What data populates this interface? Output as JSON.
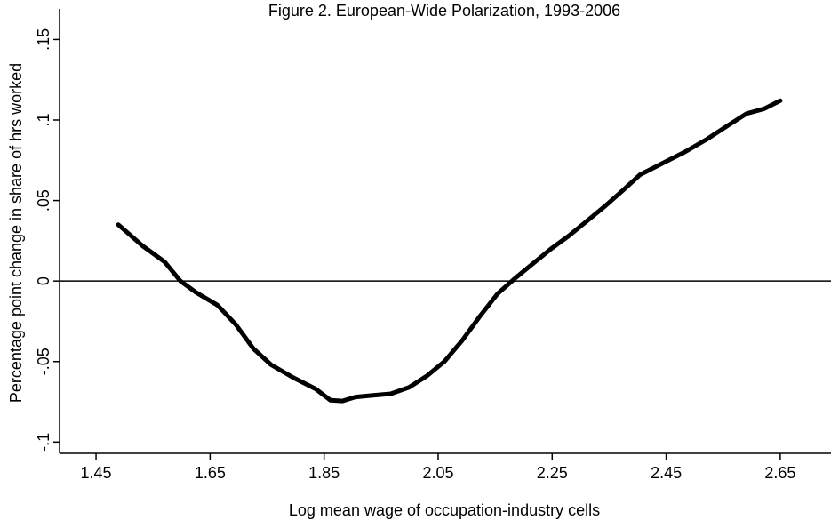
{
  "chart_data": {
    "type": "line",
    "title": "Figure 2. European-Wide Polarization, 1993-2006",
    "x_label": "Log mean wage of occupation-industry cells",
    "y_label": "Percentage point change in share of hrs worked",
    "x": [
      1.489,
      1.531,
      1.57,
      1.598,
      1.625,
      1.663,
      1.695,
      1.726,
      1.757,
      1.796,
      1.835,
      1.861,
      1.882,
      1.905,
      1.936,
      1.967,
      1.999,
      2.03,
      2.061,
      2.092,
      2.123,
      2.154,
      2.186,
      2.217,
      2.248,
      2.279,
      2.31,
      2.341,
      2.373,
      2.404,
      2.443,
      2.482,
      2.521,
      2.56,
      2.591,
      2.622,
      2.65
    ],
    "series": [
      {
        "color": "#000000",
        "values": [
          0.035,
          0.022,
          0.012,
          0.0,
          -0.007,
          -0.015,
          -0.027,
          -0.042,
          -0.052,
          -0.06,
          -0.067,
          -0.074,
          -0.0745,
          -0.072,
          -0.071,
          -0.07,
          -0.066,
          -0.059,
          -0.05,
          -0.037,
          -0.022,
          -0.008,
          0.002,
          0.011,
          0.02,
          0.028,
          0.037,
          0.046,
          0.056,
          0.066,
          0.073,
          0.08,
          0.088,
          0.097,
          0.104,
          0.107,
          0.112
        ]
      }
    ],
    "xlim": [
      1.386,
      2.739
    ],
    "ylim": [
      -0.107,
      0.169
    ],
    "xticks": [
      1.45,
      1.65,
      1.85,
      2.05,
      2.25,
      2.45,
      2.65
    ],
    "yticks": [
      {
        "value": -0.1,
        "label": "-.1"
      },
      {
        "value": -0.05,
        "label": "-.05"
      },
      {
        "value": 0,
        "label": "0"
      },
      {
        "value": 0.05,
        "label": ".05"
      },
      {
        "value": 0.1,
        "label": ".1"
      },
      {
        "value": 0.15,
        "label": ".15"
      }
    ],
    "reference_line": 0
  }
}
